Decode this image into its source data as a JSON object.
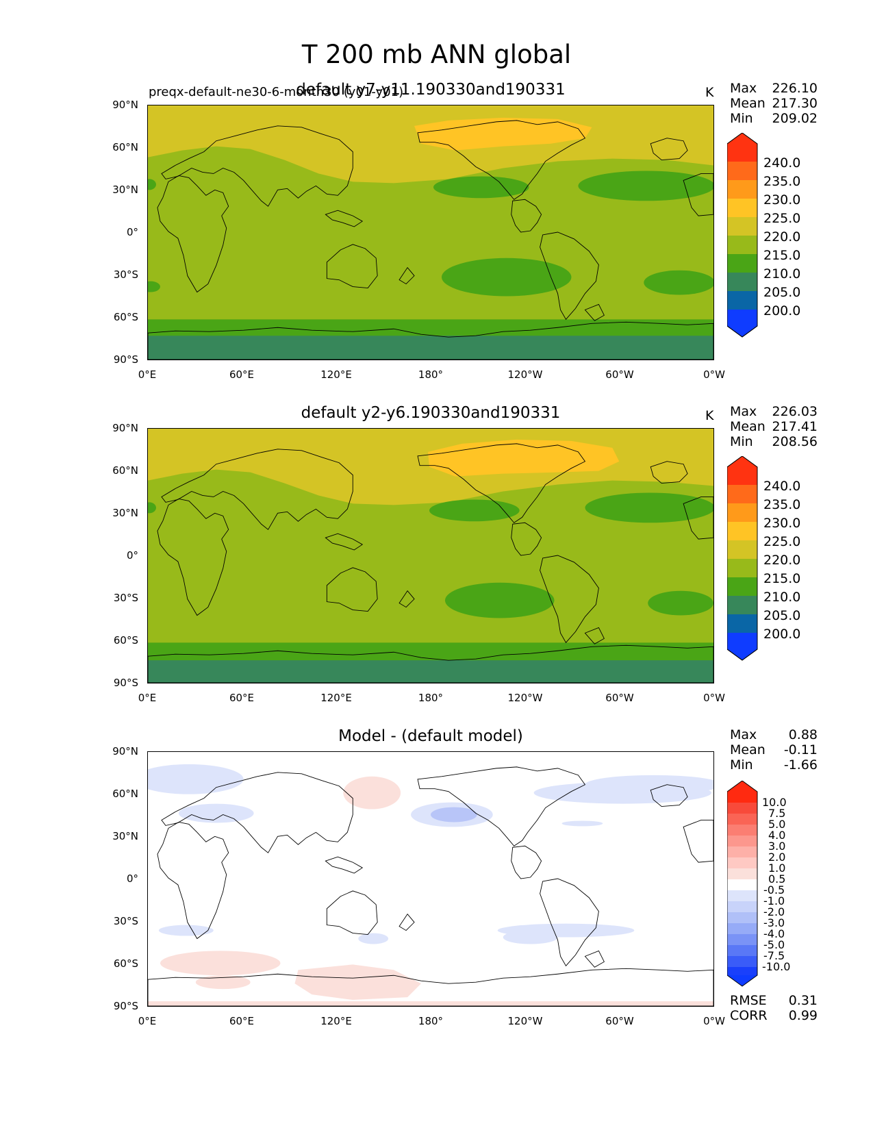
{
  "title": "T 200 mb ANN global",
  "lat_ticks": [
    "90°N",
    "60°N",
    "30°N",
    "0°",
    "30°S",
    "60°S",
    "90°S"
  ],
  "lon_ticks": [
    "0°E",
    "60°E",
    "120°E",
    "180°",
    "120°W",
    "60°W",
    "0°W"
  ],
  "panels": [
    {
      "title": "default y7-y11.190330and190331",
      "left_title": "preqx-default-ne30-6-month30 (y01-y01)",
      "units": "K",
      "stats": {
        "max_label": "Max",
        "max": "226.10",
        "mean_label": "Mean",
        "mean": "217.30",
        "min_label": "Min",
        "min": "209.02"
      },
      "colorbar_levels": [
        "240.0",
        "235.0",
        "230.0",
        "225.0",
        "220.0",
        "215.0",
        "210.0",
        "205.0",
        "200.0"
      ]
    },
    {
      "title": "default y2-y6.190330and190331",
      "units": "K",
      "stats": {
        "max_label": "Max",
        "max": "226.03",
        "mean_label": "Mean",
        "mean": "217.41",
        "min_label": "Min",
        "min": "208.56"
      },
      "colorbar_levels": [
        "240.0",
        "235.0",
        "230.0",
        "225.0",
        "220.0",
        "215.0",
        "210.0",
        "205.0",
        "200.0"
      ]
    },
    {
      "title": "Model - (default model)",
      "stats": {
        "max_label": "Max",
        "max": "0.88",
        "mean_label": "Mean",
        "mean": "-0.11",
        "min_label": "Min",
        "min": "-1.66"
      },
      "colorbar_levels": [
        "10.0",
        "7.5",
        "5.0",
        "4.0",
        "3.0",
        "2.0",
        "1.0",
        "0.5",
        "-0.5",
        "-1.0",
        "-2.0",
        "-3.0",
        "-4.0",
        "-5.0",
        "-7.5",
        "-10.0"
      ],
      "rmse_label": "RMSE",
      "rmse": "0.31",
      "corr_label": "CORR",
      "corr": "0.99"
    }
  ],
  "colors": {
    "c240": "#ff3311",
    "c235": "#ff6a1a",
    "c230": "#ff9a1a",
    "c225": "#ffc425",
    "c220": "#d4c425",
    "c215": "#98ba1a",
    "c210": "#4aa516",
    "c205": "#37875a",
    "c200": "#0a66a6",
    "c195": "#0f3cff",
    "diff_pos": "#fbe0db",
    "diff_neg": "#dde4fb",
    "diff_neg2": "#b8c5f8"
  }
}
